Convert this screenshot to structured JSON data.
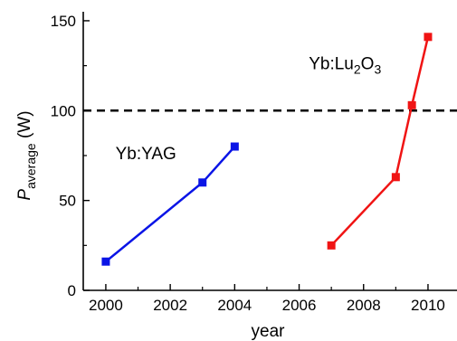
{
  "chart_data": {
    "type": "line",
    "xlabel": "year",
    "ylabel_main": "P",
    "ylabel_sub": "average",
    "ylabel_unit": " (W)",
    "xlim": [
      1999.3,
      2010.9
    ],
    "ylim": [
      0,
      155
    ],
    "x_ticks": [
      2000,
      2002,
      2004,
      2006,
      2008,
      2010
    ],
    "y_ticks": [
      0,
      50,
      100,
      150
    ],
    "grid": false,
    "reference_line": {
      "y": 100,
      "style": "dashed",
      "color": "#000000"
    },
    "series": [
      {
        "color": "#0a14e6",
        "marker": "square",
        "points": [
          {
            "x": 2000,
            "y": 16
          },
          {
            "x": 2003,
            "y": 60
          },
          {
            "x": 2004,
            "y": 80
          }
        ]
      },
      {
        "color": "#f01414",
        "marker": "square",
        "points": [
          {
            "x": 2007,
            "y": 25
          },
          {
            "x": 2009,
            "y": 63
          },
          {
            "x": 2009.5,
            "y": 103
          },
          {
            "x": 2010,
            "y": 141
          }
        ]
      }
    ],
    "annotations": [
      {
        "text": "Yb:YAG",
        "x": 2000.3,
        "y": 73
      },
      {
        "text_parts": [
          "Yb:Lu",
          "2",
          "O",
          "3"
        ],
        "x": 2006.3,
        "y": 123
      }
    ]
  }
}
